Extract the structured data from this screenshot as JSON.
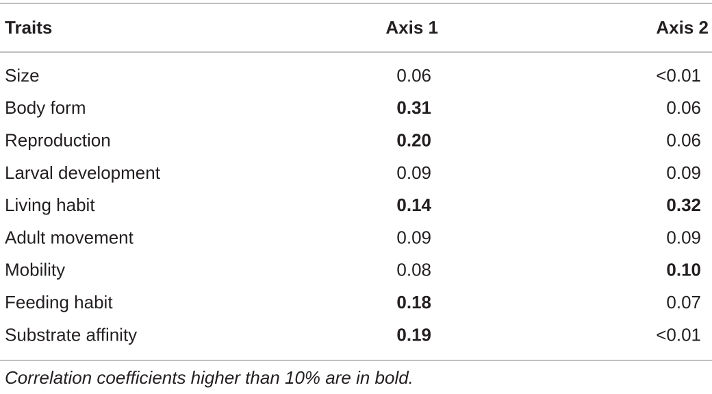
{
  "table": {
    "header": [
      "Traits",
      "Axis 1",
      "Axis 2"
    ],
    "rows": [
      {
        "cells": [
          "Size",
          "0.06",
          "<0.01"
        ],
        "bold": [
          false,
          false,
          false
        ]
      },
      {
        "cells": [
          "Body form",
          "0.31",
          "0.06"
        ],
        "bold": [
          false,
          true,
          false
        ]
      },
      {
        "cells": [
          "Reproduction",
          "0.20",
          "0.06"
        ],
        "bold": [
          false,
          true,
          false
        ]
      },
      {
        "cells": [
          "Larval development",
          "0.09",
          "0.09"
        ],
        "bold": [
          false,
          false,
          false
        ]
      },
      {
        "cells": [
          "Living habit",
          "0.14",
          "0.32"
        ],
        "bold": [
          false,
          true,
          true
        ]
      },
      {
        "cells": [
          "Adult movement",
          "0.09",
          "0.09"
        ],
        "bold": [
          false,
          false,
          false
        ]
      },
      {
        "cells": [
          "Mobility",
          "0.08",
          "0.10"
        ],
        "bold": [
          false,
          false,
          true
        ]
      },
      {
        "cells": [
          "Feeding habit",
          "0.18",
          "0.07"
        ],
        "bold": [
          false,
          true,
          false
        ]
      },
      {
        "cells": [
          "Substrate affinity",
          "0.19",
          "<0.01"
        ],
        "bold": [
          false,
          true,
          false
        ]
      }
    ],
    "footnote": "Correlation coefficients higher than 10% are in bold."
  }
}
